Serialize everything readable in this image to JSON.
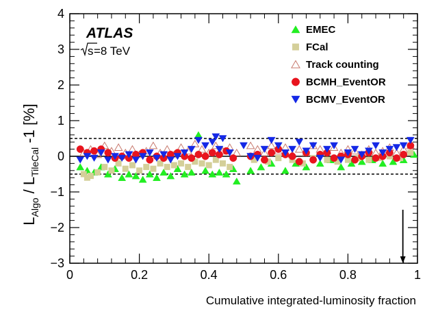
{
  "chart_data": {
    "type": "scatter",
    "title": "",
    "experiment": "ATLAS",
    "energy_root": "s",
    "energy_rest": "=8 TeV",
    "xlabel": "Cumulative integrated-luminosity fraction",
    "ylabel": {
      "main": "L",
      "sub_algo": "Algo",
      "slash": " / L",
      "sub_ref": "TileCal",
      "suffix": " -1 [%]"
    },
    "xlim": [
      0,
      1
    ],
    "ylim": [
      -3,
      4
    ],
    "x_ticks": [
      0,
      0.2,
      0.4,
      0.6,
      0.8,
      1
    ],
    "x_tick_labels": [
      "0",
      "0.2",
      "0.4",
      "0.6",
      "0.8",
      "1"
    ],
    "y_ticks": [
      -3,
      -2,
      -1,
      0,
      1,
      2,
      3,
      4
    ],
    "y_tick_labels": [
      "−3",
      "−2",
      "−1",
      "0",
      "1",
      "2",
      "3",
      "4"
    ],
    "reference_lines": [
      {
        "y": 0.5,
        "style": "dashed"
      },
      {
        "y": -0.5,
        "style": "dashed"
      },
      {
        "y": 0,
        "style": "solid"
      }
    ],
    "arrow_marker": {
      "x": 0.958,
      "y_from": -1.5,
      "y_to": -3.0
    },
    "legend_position": "top-right",
    "series": [
      {
        "name": "EMEC",
        "marker": "triangle-up",
        "filled": true,
        "color": "#22ee22",
        "points": [
          [
            0.03,
            -0.3
          ],
          [
            0.05,
            -0.4
          ],
          [
            0.07,
            -0.45
          ],
          [
            0.09,
            -0.3
          ],
          [
            0.11,
            -0.5
          ],
          [
            0.13,
            -0.35
          ],
          [
            0.15,
            -0.6
          ],
          [
            0.17,
            -0.5
          ],
          [
            0.19,
            -0.55
          ],
          [
            0.21,
            -0.65
          ],
          [
            0.23,
            -0.5
          ],
          [
            0.25,
            -0.6
          ],
          [
            0.27,
            -0.45
          ],
          [
            0.29,
            -0.55
          ],
          [
            0.31,
            -0.35
          ],
          [
            0.33,
            -0.5
          ],
          [
            0.35,
            -0.45
          ],
          [
            0.37,
            0.6
          ],
          [
            0.39,
            -0.4
          ],
          [
            0.41,
            -0.5
          ],
          [
            0.43,
            -0.45
          ],
          [
            0.45,
            -0.5
          ],
          [
            0.47,
            -0.35
          ],
          [
            0.48,
            -0.7
          ],
          [
            0.52,
            -0.4
          ],
          [
            0.55,
            -0.3
          ],
          [
            0.58,
            -0.2
          ],
          [
            0.62,
            -0.4
          ],
          [
            0.65,
            -0.2
          ],
          [
            0.68,
            -0.3
          ],
          [
            0.72,
            -0.2
          ],
          [
            0.75,
            -0.1
          ],
          [
            0.78,
            -0.3
          ],
          [
            0.81,
            -0.2
          ],
          [
            0.84,
            -0.15
          ],
          [
            0.87,
            -0.1
          ],
          [
            0.9,
            -0.2
          ],
          [
            0.93,
            -0.15
          ],
          [
            0.96,
            -0.1
          ],
          [
            0.99,
            0.05
          ]
        ]
      },
      {
        "name": "FCal",
        "marker": "square",
        "filled": true,
        "color": "#d4cf99",
        "points": [
          [
            0.04,
            -0.5
          ],
          [
            0.05,
            -0.6
          ],
          [
            0.06,
            -0.55
          ],
          [
            0.08,
            -0.45
          ],
          [
            0.1,
            -0.3
          ],
          [
            0.12,
            -0.4
          ],
          [
            0.14,
            -0.2
          ],
          [
            0.16,
            -0.35
          ],
          [
            0.18,
            -0.25
          ],
          [
            0.2,
            -0.4
          ],
          [
            0.22,
            -0.3
          ],
          [
            0.24,
            -0.35
          ],
          [
            0.26,
            -0.2
          ],
          [
            0.28,
            -0.3
          ],
          [
            0.3,
            -0.25
          ],
          [
            0.32,
            -0.2
          ],
          [
            0.34,
            -0.3
          ],
          [
            0.36,
            -0.15
          ],
          [
            0.38,
            -0.2
          ],
          [
            0.4,
            -0.25
          ],
          [
            0.42,
            -0.1
          ],
          [
            0.44,
            -0.2
          ],
          [
            0.46,
            -0.3
          ],
          [
            0.53,
            -0.1
          ],
          [
            0.57,
            -0.15
          ],
          [
            0.6,
            -0.05
          ],
          [
            0.64,
            -0.1
          ],
          [
            0.67,
            -0.2
          ],
          [
            0.7,
            -0.05
          ],
          [
            0.74,
            -0.1
          ],
          [
            0.77,
            -0.15
          ],
          [
            0.8,
            -0.1
          ],
          [
            0.83,
            -0.05
          ],
          [
            0.86,
            -0.1
          ],
          [
            0.89,
            -0.05
          ],
          [
            0.92,
            0.0
          ],
          [
            0.95,
            -0.05
          ],
          [
            0.98,
            0.1
          ]
        ]
      },
      {
        "name": "Track counting",
        "marker": "triangle-up",
        "filled": false,
        "color": "#c87a6e",
        "points": [
          [
            0.04,
            0.1
          ],
          [
            0.06,
            0.2
          ],
          [
            0.08,
            0.05
          ],
          [
            0.1,
            0.3
          ],
          [
            0.12,
            0.15
          ],
          [
            0.14,
            0.25
          ],
          [
            0.16,
            0.1
          ],
          [
            0.18,
            0.2
          ],
          [
            0.2,
            0.05
          ],
          [
            0.22,
            0.15
          ],
          [
            0.24,
            0.3
          ],
          [
            0.26,
            0.1
          ],
          [
            0.28,
            0.2
          ],
          [
            0.3,
            0.05
          ],
          [
            0.32,
            0.25
          ],
          [
            0.34,
            0.15
          ],
          [
            0.36,
            0.35
          ],
          [
            0.38,
            0.2
          ],
          [
            0.4,
            0.1
          ],
          [
            0.42,
            0.3
          ],
          [
            0.44,
            0.15
          ],
          [
            0.46,
            0.25
          ],
          [
            0.48,
            0.1
          ],
          [
            0.52,
            0.3
          ],
          [
            0.54,
            0.2
          ],
          [
            0.56,
            0.1
          ],
          [
            0.58,
            0.3
          ],
          [
            0.6,
            0.15
          ],
          [
            0.62,
            0.25
          ],
          [
            0.64,
            0.05
          ],
          [
            0.66,
            0.2
          ],
          [
            0.68,
            0.1
          ],
          [
            0.7,
            0.3
          ],
          [
            0.72,
            0.2
          ],
          [
            0.74,
            0.15
          ],
          [
            0.76,
            0.25
          ],
          [
            0.78,
            0.1
          ],
          [
            0.8,
            0.2
          ],
          [
            0.82,
            0.15
          ],
          [
            0.84,
            0.05
          ],
          [
            0.86,
            0.2
          ],
          [
            0.88,
            0.1
          ],
          [
            0.9,
            0.15
          ],
          [
            0.92,
            0.25
          ],
          [
            0.94,
            0.1
          ],
          [
            0.96,
            0.2
          ],
          [
            0.98,
            0.3
          ]
        ]
      },
      {
        "name": "BCMH_EventOR",
        "marker": "circle",
        "filled": true,
        "color": "#e8141e",
        "points": [
          [
            0.03,
            0.2
          ],
          [
            0.05,
            0.1
          ],
          [
            0.07,
            0.15
          ],
          [
            0.09,
            0.2
          ],
          [
            0.11,
            0.1
          ],
          [
            0.13,
            -0.05
          ],
          [
            0.15,
            0.0
          ],
          [
            0.17,
            -0.05
          ],
          [
            0.19,
            0.05
          ],
          [
            0.21,
            0.1
          ],
          [
            0.23,
            -0.1
          ],
          [
            0.25,
            0.0
          ],
          [
            0.27,
            -0.05
          ],
          [
            0.29,
            0.05
          ],
          [
            0.31,
            0.1
          ],
          [
            0.33,
            0.0
          ],
          [
            0.35,
            -0.05
          ],
          [
            0.37,
            0.05
          ],
          [
            0.39,
            0.0
          ],
          [
            0.41,
            0.1
          ],
          [
            0.43,
            0.05
          ],
          [
            0.45,
            0.15
          ],
          [
            0.47,
            -0.05
          ],
          [
            0.52,
            0.0
          ],
          [
            0.54,
            0.05
          ],
          [
            0.56,
            -0.1
          ],
          [
            0.58,
            0.1
          ],
          [
            0.6,
            0.2
          ],
          [
            0.62,
            0.05
          ],
          [
            0.64,
            0.0
          ],
          [
            0.66,
            -0.15
          ],
          [
            0.68,
            0.1
          ],
          [
            0.7,
            -0.1
          ],
          [
            0.72,
            0.05
          ],
          [
            0.74,
            0.1
          ],
          [
            0.76,
            -0.05
          ],
          [
            0.78,
            0.0
          ],
          [
            0.8,
            0.05
          ],
          [
            0.82,
            -0.1
          ],
          [
            0.84,
            0.0
          ],
          [
            0.86,
            0.1
          ],
          [
            0.88,
            -0.05
          ],
          [
            0.9,
            0.0
          ],
          [
            0.92,
            0.1
          ],
          [
            0.94,
            -0.05
          ],
          [
            0.96,
            0.05
          ],
          [
            0.98,
            0.3
          ]
        ]
      },
      {
        "name": "BCMV_EventOR",
        "marker": "triangle-down",
        "filled": true,
        "color": "#1428e6",
        "points": [
          [
            0.03,
            -0.1
          ],
          [
            0.05,
            0.0
          ],
          [
            0.07,
            -0.05
          ],
          [
            0.09,
            0.1
          ],
          [
            0.11,
            -0.1
          ],
          [
            0.13,
            0.0
          ],
          [
            0.15,
            -0.05
          ],
          [
            0.17,
            0.05
          ],
          [
            0.19,
            -0.1
          ],
          [
            0.21,
            0.0
          ],
          [
            0.23,
            0.1
          ],
          [
            0.25,
            -0.05
          ],
          [
            0.27,
            0.05
          ],
          [
            0.29,
            -0.1
          ],
          [
            0.31,
            0.0
          ],
          [
            0.33,
            0.1
          ],
          [
            0.35,
            0.2
          ],
          [
            0.37,
            0.45
          ],
          [
            0.39,
            0.3
          ],
          [
            0.41,
            0.4
          ],
          [
            0.42,
            0.55
          ],
          [
            0.43,
            0.2
          ],
          [
            0.44,
            0.5
          ],
          [
            0.46,
            0.1
          ],
          [
            0.5,
            0.3
          ],
          [
            0.52,
            0.0
          ],
          [
            0.54,
            -0.05
          ],
          [
            0.56,
            0.2
          ],
          [
            0.58,
            0.45
          ],
          [
            0.6,
            0.3
          ],
          [
            0.62,
            0.1
          ],
          [
            0.64,
            0.2
          ],
          [
            0.66,
            0.4
          ],
          [
            0.68,
            0.15
          ],
          [
            0.7,
            0.3
          ],
          [
            0.72,
            -0.05
          ],
          [
            0.74,
            0.2
          ],
          [
            0.76,
            0.3
          ],
          [
            0.78,
            -0.1
          ],
          [
            0.8,
            0.1
          ],
          [
            0.82,
            0.2
          ],
          [
            0.84,
            0.05
          ],
          [
            0.86,
            0.15
          ],
          [
            0.88,
            0.3
          ],
          [
            0.9,
            0.1
          ],
          [
            0.92,
            0.2
          ],
          [
            0.94,
            0.25
          ],
          [
            0.96,
            0.3
          ],
          [
            0.98,
            0.45
          ]
        ]
      }
    ]
  }
}
